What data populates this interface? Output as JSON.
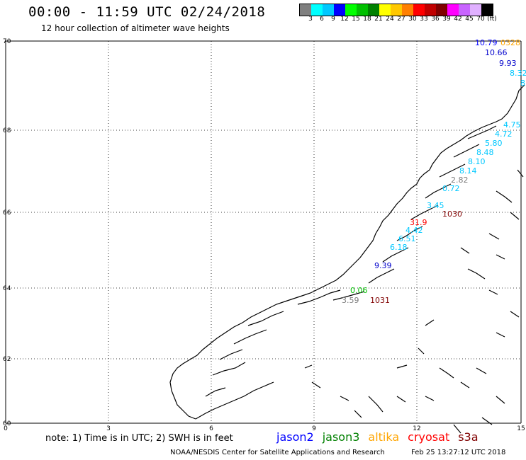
{
  "header": {
    "title": "00:00 - 11:59 UTC 02/24/2018",
    "subtitle": "12 hour collection of altimeter wave heights"
  },
  "colorbar": {
    "swatches": [
      "#7f7f7f",
      "#00ffff",
      "#00c8ff",
      "#0000ff",
      "#00ff00",
      "#00c000",
      "#008000",
      "#ffff00",
      "#ffc800",
      "#ff8000",
      "#ff0000",
      "#c00000",
      "#800000",
      "#ff00ff",
      "#c864ff",
      "#e0b0ff",
      "#000000"
    ],
    "labels": [
      "3",
      "6",
      "9",
      "12",
      "15",
      "18",
      "21",
      "24",
      "27",
      "30",
      "33",
      "36",
      "39",
      "42",
      "45",
      "70",
      "(ft)"
    ]
  },
  "axes": {
    "x_ticks": [
      "0",
      "3",
      "6",
      "9",
      "12",
      "15"
    ],
    "y_ticks": [
      "70",
      "68",
      "66",
      "64",
      "62",
      "60"
    ]
  },
  "readings": [
    {
      "text": "10.79",
      "color": "#0000ff"
    },
    {
      "text": "0328",
      "color": "#ffa500"
    },
    {
      "text": "10.66",
      "color": "#0000cc"
    },
    {
      "text": "9.93",
      "color": "#0000cc"
    },
    {
      "text": "8.32",
      "color": "#00c8ff"
    },
    {
      "text": "8",
      "color": "#00c8ff"
    },
    {
      "text": "4.75",
      "color": "#00c8ff"
    },
    {
      "text": "4.72",
      "color": "#00c8ff"
    },
    {
      "text": "5.80",
      "color": "#00c8ff"
    },
    {
      "text": "8.48",
      "color": "#00c8ff"
    },
    {
      "text": "8.10",
      "color": "#00c8ff"
    },
    {
      "text": "8.14",
      "color": "#00c8ff"
    },
    {
      "text": "2.82",
      "color": "#7f7f7f"
    },
    {
      "text": "0.72",
      "color": "#00c8ff"
    },
    {
      "text": "3.45",
      "color": "#00c8ff"
    },
    {
      "text": "1030",
      "color": "#800000"
    },
    {
      "text": "31.9",
      "color": "#ff0000"
    },
    {
      "text": "4.42",
      "color": "#00c8ff"
    },
    {
      "text": "6.51",
      "color": "#00c8ff"
    },
    {
      "text": "6.18",
      "color": "#00c8ff"
    },
    {
      "text": "9.39",
      "color": "#0000cc"
    },
    {
      "text": "0.06",
      "color": "#00c000"
    },
    {
      "text": "3.59",
      "color": "#7f7f7f"
    },
    {
      "text": "1031",
      "color": "#800000"
    }
  ],
  "note": "note: 1) Time is in UTC; 2) SWH is in feet",
  "legend": [
    {
      "text": "jason2",
      "color": "#0000ff"
    },
    {
      "text": "jason3",
      "color": "#008000"
    },
    {
      "text": "altika",
      "color": "#ffa500"
    },
    {
      "text": "cryosat",
      "color": "#ff0000"
    },
    {
      "text": "s3a",
      "color": "#800000"
    }
  ],
  "footer": "NOAA/NESDIS Center for Satellite Applications and Research",
  "timestamp": "Feb 25 13:27:12 UTC 2018"
}
